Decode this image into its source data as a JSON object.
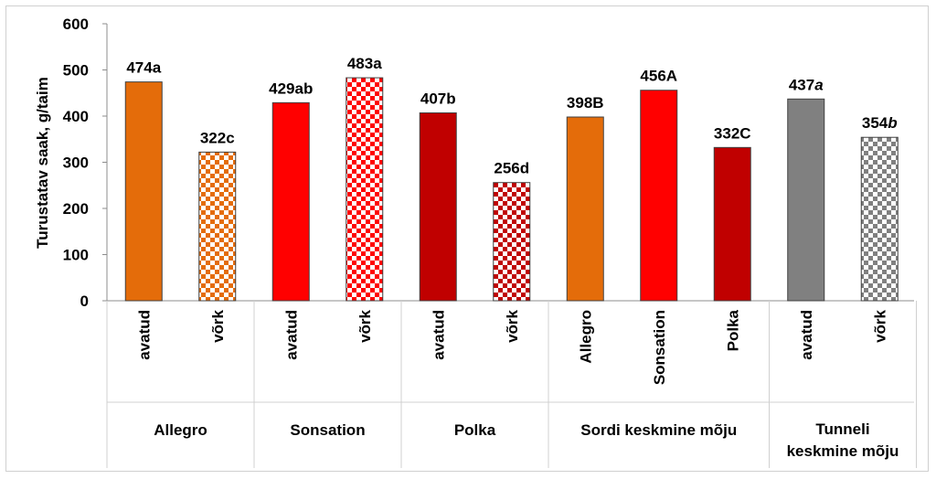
{
  "chart_data": {
    "type": "bar",
    "ylabel": "Turustatav saak, g/taim",
    "ylim": [
      0,
      600
    ],
    "yticks": [
      "0",
      "100",
      "200",
      "300",
      "400",
      "500",
      "600"
    ],
    "grid": false,
    "legend": "none",
    "groups": [
      {
        "name": "Allegro",
        "bars": [
          {
            "category": "avatud",
            "value": 474,
            "label": "474",
            "letter": "a",
            "italic": false,
            "color": "#E46C0A",
            "pattern": "solid"
          },
          {
            "category": "võrk",
            "value": 322,
            "label": "322",
            "letter": "c",
            "italic": false,
            "color": "#E46C0A",
            "pattern": "checker"
          }
        ]
      },
      {
        "name": "Sonsation",
        "bars": [
          {
            "category": "avatud",
            "value": 429,
            "label": "429",
            "letter": "ab",
            "italic": false,
            "color": "#FF0000",
            "pattern": "solid"
          },
          {
            "category": "võrk",
            "value": 483,
            "label": "483",
            "letter": "a",
            "italic": false,
            "color": "#FF0000",
            "pattern": "checker"
          }
        ]
      },
      {
        "name": "Polka",
        "bars": [
          {
            "category": "avatud",
            "value": 407,
            "label": "407",
            "letter": "b",
            "italic": false,
            "color": "#C00000",
            "pattern": "solid"
          },
          {
            "category": "võrk",
            "value": 256,
            "label": "256",
            "letter": "d",
            "italic": false,
            "color": "#C00000",
            "pattern": "checker"
          }
        ]
      },
      {
        "name": "Sordi keskmine mõju",
        "bars": [
          {
            "category": "Allegro",
            "value": 398,
            "label": "398",
            "letter": "B",
            "italic": false,
            "color": "#E46C0A",
            "pattern": "solid"
          },
          {
            "category": "Sonsation",
            "value": 456,
            "label": "456",
            "letter": "A",
            "italic": false,
            "color": "#FF0000",
            "pattern": "solid"
          },
          {
            "category": "Polka",
            "value": 332,
            "label": "332",
            "letter": "C",
            "italic": false,
            "color": "#C00000",
            "pattern": "solid"
          }
        ]
      },
      {
        "name": "Tunneli keskmine mõju",
        "name_lines": [
          "Tunneli",
          "keskmine mõju"
        ],
        "bars": [
          {
            "category": "avatud",
            "value": 437,
            "label": "437",
            "letter": "a",
            "italic": true,
            "color": "#808080",
            "pattern": "solid"
          },
          {
            "category": "võrk",
            "value": 354,
            "label": "354",
            "letter": "b",
            "italic": true,
            "color": "#808080",
            "pattern": "checker"
          }
        ]
      }
    ]
  }
}
